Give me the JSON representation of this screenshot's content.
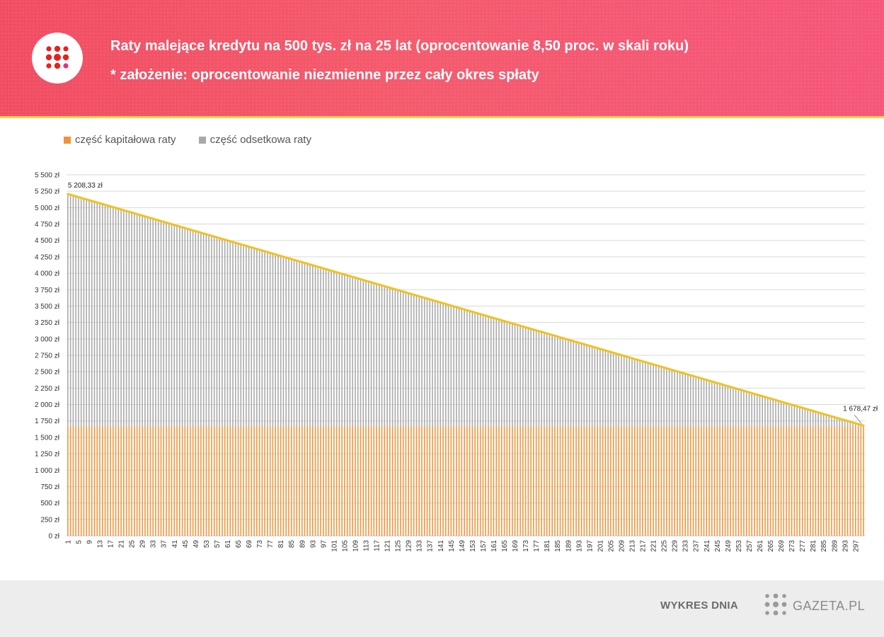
{
  "header": {
    "title": "Raty malejące kredytu na 500 tys. zł na 25 lat (oprocentowanie 8,50 proc. w skali roku)",
    "subtitle": "* założenie: oprocentowanie niezmienne przez cały okres spłaty",
    "logo_icon": "gazeta-dots-logo-icon"
  },
  "legend": {
    "items": [
      {
        "label": "część kapitałowa raty",
        "color": "#f0943b"
      },
      {
        "label": "część odsetkowa raty",
        "color": "#a9a9a9"
      }
    ],
    "placement": "top-left"
  },
  "chart_data": {
    "type": "bar",
    "stacked": true,
    "x_start": 1,
    "x_end": 300,
    "x_tick_start": 1,
    "x_tick_step": 4,
    "series": [
      {
        "name": "część kapitałowa raty",
        "color": "#f0943b",
        "constant_value": 1666.67
      },
      {
        "name": "część odsetkowa raty",
        "color": "#a9a9a9",
        "first_value": 3541.67,
        "last_value": 11.8
      }
    ],
    "total_line": {
      "color": "#f2c21b",
      "first_value": 5208.33,
      "last_value": 1678.47
    },
    "annotations": [
      {
        "x": 1,
        "value": 5208.33,
        "label": "5 208,33 zł"
      },
      {
        "x": 300,
        "value": 1678.47,
        "label": "1 678,47 zł"
      }
    ],
    "ylim": [
      0,
      5500
    ],
    "y_tick_step": 250,
    "y_tick_labels": [
      "0 zł",
      "250 zł",
      "500 zł",
      "750 zł",
      "1 000 zł",
      "1 250 zł",
      "1 500 zł",
      "1 750 zł",
      "2 000 zł",
      "2 250 zł",
      "2 500 zł",
      "2 750 zł",
      "3 000 zł",
      "3 250 zł",
      "3 500 zł",
      "3 750 zł",
      "4 000 zł",
      "4 250 zł",
      "4 500 zł",
      "4 750 zł",
      "5 000 zł",
      "5 250 zł",
      "5 500 zł"
    ],
    "grid": true,
    "xlabel": "",
    "ylabel": ""
  },
  "footer": {
    "label": "WYKRES DNIA",
    "brand": "GAZETA.PL"
  }
}
